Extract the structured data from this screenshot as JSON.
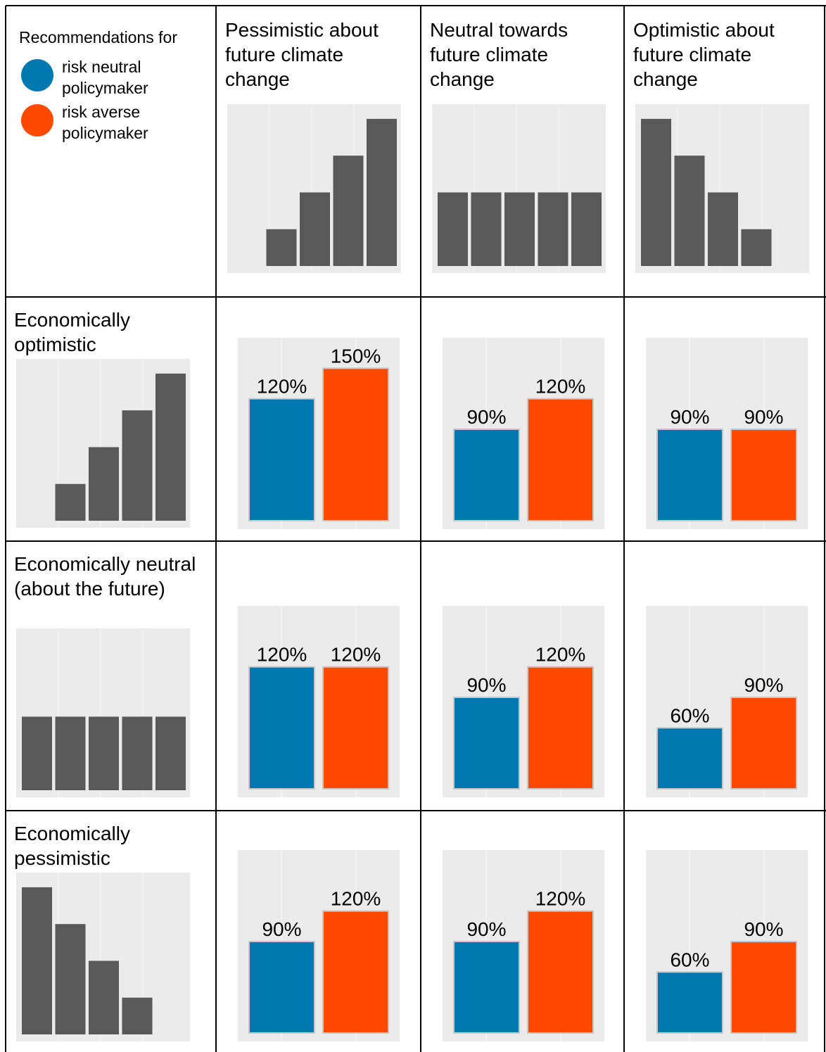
{
  "legend": {
    "title": "Recommendations for",
    "items": [
      {
        "label": "risk neutral policymaker",
        "color": "#0079b0"
      },
      {
        "label": "risk averse policymaker",
        "color": "#ff4a00"
      }
    ]
  },
  "distribution_color": "#595959",
  "distribution_ylim": [
    0,
    4.4
  ],
  "recommendation_ylim": [
    0,
    180
  ],
  "columns": [
    {
      "label": "Pessimistic about future climate change",
      "distribution": [
        0,
        1,
        2,
        3,
        4
      ]
    },
    {
      "label": "Neutral towards future climate change",
      "distribution": [
        2,
        2,
        2,
        2,
        2
      ]
    },
    {
      "label": "Optimistic about future climate change",
      "distribution": [
        4,
        3,
        2,
        1,
        0
      ]
    }
  ],
  "rows": [
    {
      "label": "Economically optimistic",
      "distribution": [
        0,
        1,
        2,
        3,
        4
      ],
      "recommendations": [
        {
          "values": [
            120,
            150
          ],
          "value_labels": [
            "120%",
            "150%"
          ]
        },
        {
          "values": [
            90,
            120
          ],
          "value_labels": [
            "90%",
            "120%"
          ]
        },
        {
          "values": [
            90,
            90
          ],
          "value_labels": [
            "90%",
            "90%"
          ]
        }
      ]
    },
    {
      "label": "Economically neutral (about the future)",
      "distribution": [
        2,
        2,
        2,
        2,
        2
      ],
      "recommendations": [
        {
          "values": [
            120,
            120
          ],
          "value_labels": [
            "120%",
            "120%"
          ]
        },
        {
          "values": [
            90,
            120
          ],
          "value_labels": [
            "90%",
            "120%"
          ]
        },
        {
          "values": [
            60,
            90
          ],
          "value_labels": [
            "60%",
            "90%"
          ]
        }
      ]
    },
    {
      "label": "Economically pessimistic",
      "distribution": [
        4,
        3,
        2,
        1,
        0
      ],
      "recommendations": [
        {
          "values": [
            90,
            120
          ],
          "value_labels": [
            "90%",
            "120%"
          ]
        },
        {
          "values": [
            90,
            120
          ],
          "value_labels": [
            "90%",
            "120%"
          ]
        },
        {
          "values": [
            60,
            90
          ],
          "value_labels": [
            "60%",
            "90%"
          ]
        }
      ]
    }
  ]
}
